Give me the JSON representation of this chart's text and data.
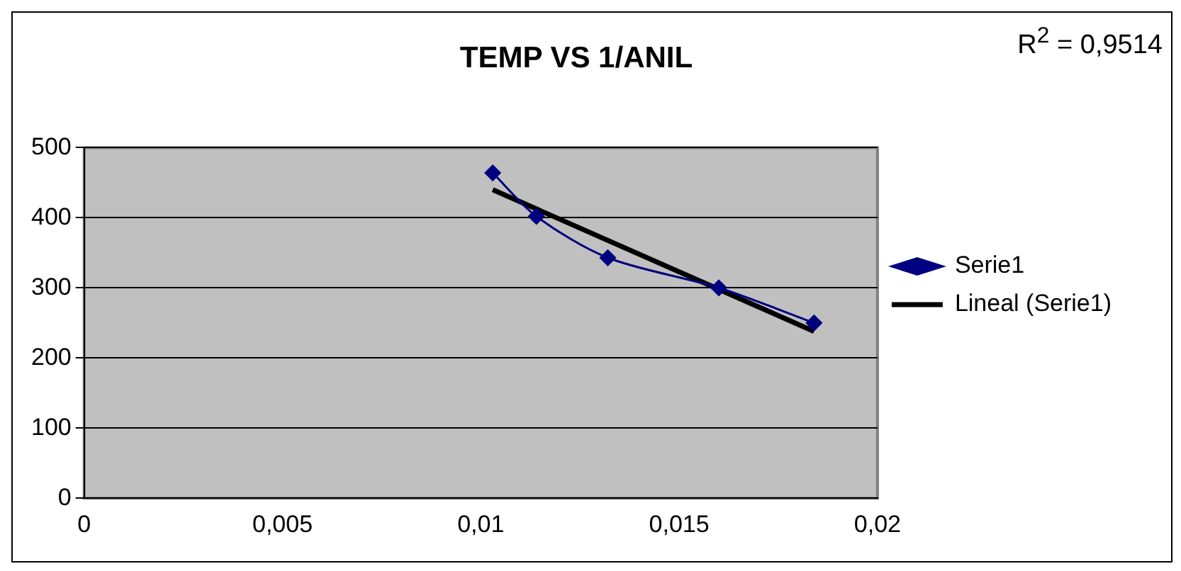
{
  "chart_data": {
    "type": "line",
    "title": "TEMP VS 1/ANIL",
    "annotations": [
      "R$^{2}$ = 0,9514"
    ],
    "series": [
      {
        "name": "Serie1",
        "type": "line",
        "color": "#000080",
        "marker": "diamond",
        "x": [
          0.0103,
          0.0114,
          0.0132,
          0.016,
          0.0184
        ],
        "values": [
          464,
          402,
          343,
          300,
          250
        ]
      },
      {
        "name": "Lineal (Serie1)",
        "type": "line",
        "color": "#000000",
        "marker": "none",
        "x": [
          0.0103,
          0.0184
        ],
        "values": [
          440,
          238
        ]
      }
    ],
    "xlim": [
      0,
      0.02
    ],
    "xticks": [
      0,
      {
        "value": 0.005,
        "label": "0,005"
      },
      {
        "value": 0.01,
        "label": "0,01"
      },
      {
        "value": 0.015,
        "label": "0,015"
      },
      {
        "value": 0.02,
        "label": "0,02"
      }
    ],
    "ylim": [
      0,
      500
    ],
    "yticks": [
      0,
      100,
      200,
      300,
      400,
      500
    ],
    "grid": "y",
    "legend": "right"
  }
}
